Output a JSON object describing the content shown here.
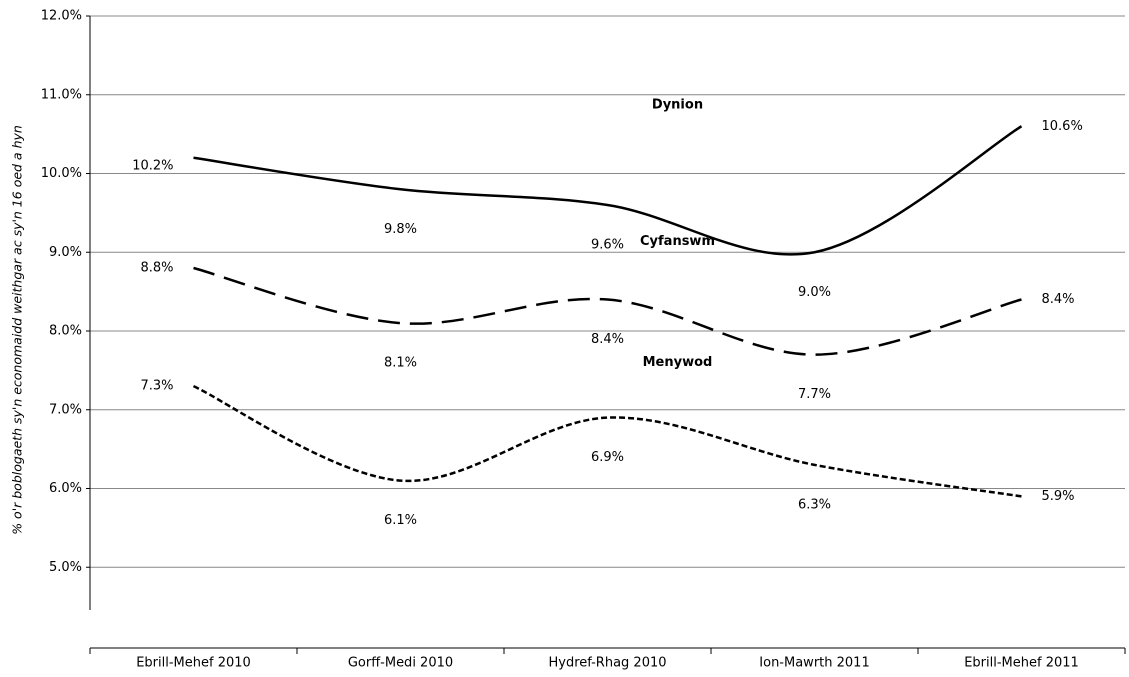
{
  "chart_data": {
    "type": "line",
    "y_label": "% o'r boblogaeth sy'n economaidd weithgar ac sy'n 16 oed a hyn",
    "categories": [
      "Ebrill-Mehef 2010",
      "Gorff-Medi 2010",
      "Hydref-Rhag 2010",
      "Ion-Mawrth 2011",
      "Ebrill-Mehef 2011"
    ],
    "series": [
      {
        "name": "Dynion",
        "color": "#000000",
        "line_style": "solid",
        "values": [
          10.2,
          9.8,
          9.6,
          9.0,
          10.6
        ],
        "value_labels": [
          "10.2%",
          "9.8%",
          "9.6%",
          "9.0%",
          "10.6%"
        ]
      },
      {
        "name": "Cyfanswm",
        "color": "#000000",
        "line_style": "dashed",
        "values": [
          8.8,
          8.1,
          8.4,
          7.7,
          8.4
        ],
        "value_labels": [
          "8.8%",
          "8.1%",
          "8.4%",
          "7.7%",
          "8.4%"
        ]
      },
      {
        "name": "Menywod",
        "color": "#000000",
        "line_style": "dotted",
        "values": [
          7.3,
          6.1,
          6.9,
          6.3,
          5.9
        ],
        "value_labels": [
          "7.3%",
          "6.1%",
          "6.9%",
          "6.3%",
          "5.9%"
        ]
      }
    ],
    "ylim": [
      4,
      12
    ],
    "yticks": [
      {
        "value": 5,
        "label": "5.0%"
      },
      {
        "value": 6,
        "label": "6.0%"
      },
      {
        "value": 7,
        "label": "7.0%"
      },
      {
        "value": 8,
        "label": "8.0%"
      },
      {
        "value": 9,
        "label": "9.0%"
      },
      {
        "value": 10,
        "label": "10.0%"
      },
      {
        "value": 11,
        "label": "11.0%"
      },
      {
        "value": 12,
        "label": "12.0%"
      }
    ],
    "grid": true,
    "smooth": true
  }
}
